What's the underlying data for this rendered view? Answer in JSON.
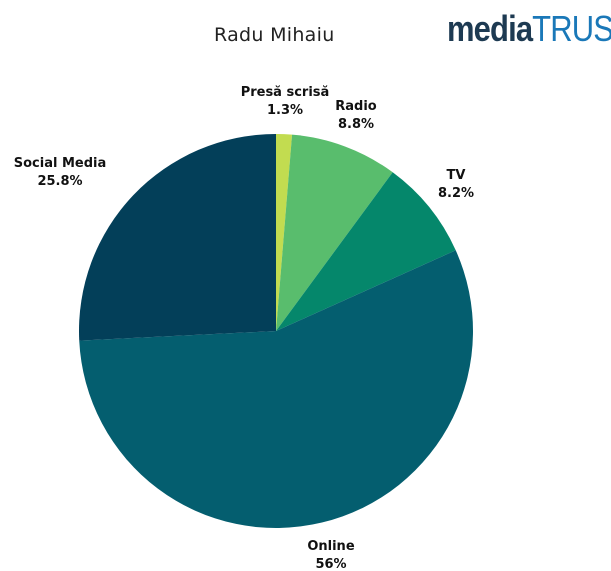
{
  "header": {
    "title": "Radu Mihaiu",
    "logo_text": "mediaTRUST"
  },
  "chart_data": {
    "type": "pie",
    "title": "Radu Mihaiu",
    "start_angle_deg": 0,
    "direction": "clockwise",
    "slices": [
      {
        "label": "Presă scrisă",
        "value": 1.3,
        "display": "1.3%",
        "color": "#c2dc50"
      },
      {
        "label": "Radio",
        "value": 8.8,
        "display": "8.8%",
        "color": "#59bd6d"
      },
      {
        "label": "TV",
        "value": 8.2,
        "display": "8.2%",
        "color": "#05876b"
      },
      {
        "label": "Online",
        "value": 56,
        "display": "56%",
        "color": "#045e6f"
      },
      {
        "label": "Social Media",
        "value": 25.8,
        "display": "25.8%",
        "color": "#033f59"
      }
    ]
  }
}
